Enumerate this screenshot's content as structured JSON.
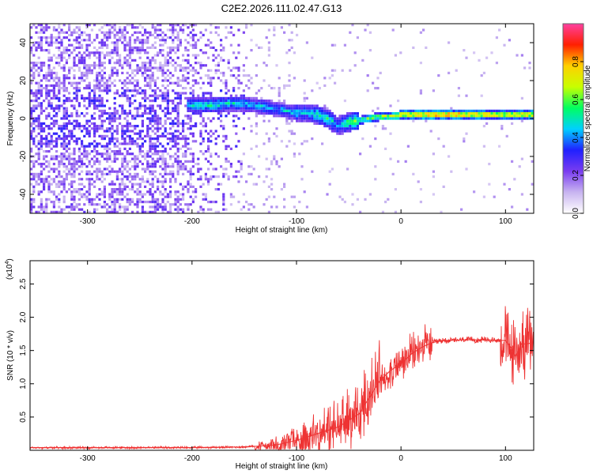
{
  "chart_data": [
    {
      "type": "heatmap",
      "title": "C2E2.2026.111.02.47.G13",
      "xlabel": "Height of straight line (km)",
      "ylabel": "Frequency (Hz)",
      "xlim": [
        -355,
        127
      ],
      "ylim": [
        -50,
        50
      ],
      "xticks": [
        -300,
        -200,
        -100,
        0,
        100
      ],
      "xtick_labels": [
        "-300",
        "-200",
        "-100",
        "0",
        "100"
      ],
      "yticks": [
        -40,
        -20,
        0,
        20,
        40
      ],
      "ytick_labels": [
        "-40",
        "-20",
        "0",
        "20",
        "40"
      ],
      "ridge": {
        "x": [
          -200,
          -180,
          -160,
          -140,
          -130,
          -120,
          -100,
          -90,
          -80,
          -70,
          -60,
          -50,
          -40,
          -30,
          -20,
          -10,
          0,
          20,
          40,
          60,
          80,
          100,
          127
        ],
        "frequency": [
          7,
          7,
          8,
          7,
          6,
          5,
          3,
          3,
          2,
          0,
          -4,
          -2,
          -1,
          0,
          1,
          1,
          2,
          2,
          2,
          2,
          2,
          2,
          2
        ],
        "amplitude": [
          0.5,
          0.55,
          0.5,
          0.45,
          0.5,
          0.45,
          0.5,
          0.45,
          0.55,
          0.55,
          0.45,
          0.6,
          0.6,
          0.65,
          0.7,
          0.75,
          0.85,
          0.9,
          0.9,
          0.9,
          0.85,
          0.8,
          0.85
        ]
      },
      "colorbar": {
        "label": "Normalized spectral amplitude",
        "range": [
          0,
          1
        ],
        "ticks": [
          0.0,
          0.2,
          0.4,
          0.6,
          0.8
        ],
        "tick_labels": [
          "0.0",
          "0.2",
          "0.4",
          "0.6",
          "0.8"
        ],
        "colors": [
          "#ffffff",
          "#c8b4f0",
          "#7a3cf0",
          "#2020ff",
          "#00d0ff",
          "#00ff60",
          "#c8ff00",
          "#ffd000",
          "#ff2000",
          "#ff40a0"
        ]
      }
    },
    {
      "type": "line",
      "xlabel": "Height of straight line (km)",
      "ylabel": "SNR (10 * v/v)",
      "yexponent_base": "(x10",
      "yexponent_power": "4",
      "yexponent_close": ")",
      "xlim": [
        -355,
        127
      ],
      "ylim": [
        0,
        2.85
      ],
      "xticks": [
        -300,
        -200,
        -100,
        0,
        100
      ],
      "xtick_labels": [
        "-300",
        "-200",
        "-100",
        "0",
        "100"
      ],
      "yticks": [
        0.5,
        1.0,
        1.5,
        2.0,
        2.5
      ],
      "ytick_labels": [
        "0.5",
        "1.0",
        "1.5",
        "2.0",
        "2.5"
      ],
      "color": "#ee3333",
      "series": [
        {
          "name": "SNR",
          "x": [
            -355,
            -300,
            -250,
            -200,
            -150,
            -120,
            -100,
            -80,
            -60,
            -50,
            -40,
            -30,
            -20,
            -10,
            0,
            10,
            20,
            30,
            40,
            60,
            80,
            100,
            105,
            110,
            115,
            120,
            127
          ],
          "values": [
            0.04,
            0.04,
            0.04,
            0.04,
            0.05,
            0.08,
            0.15,
            0.25,
            0.35,
            0.45,
            0.55,
            0.8,
            1.05,
            1.2,
            1.3,
            1.45,
            1.55,
            1.62,
            1.65,
            1.66,
            1.66,
            1.65,
            1.55,
            1.4,
            1.6,
            1.6,
            1.62
          ]
        }
      ]
    }
  ]
}
